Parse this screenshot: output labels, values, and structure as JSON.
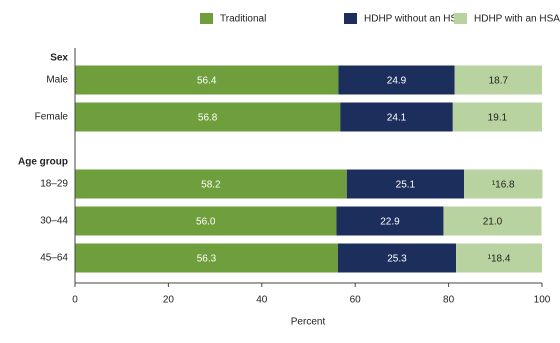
{
  "chart_data": {
    "type": "stacked-bar-horizontal",
    "groups": [
      {
        "label": "Sex",
        "categories": [
          "Male",
          "Female"
        ]
      },
      {
        "label": "Age group",
        "categories": [
          "18–29",
          "30–44",
          "45–64"
        ]
      }
    ],
    "series": [
      {
        "name": "Traditional",
        "color": "#6f9e3d",
        "label_color": "#ffffff",
        "values": [
          56.4,
          56.8,
          58.2,
          56,
          56.3
        ],
        "value_labels": [
          "56.4",
          "56.8",
          "58.2",
          "56.0",
          "56.3"
        ]
      },
      {
        "name": "HDHP without an HSA",
        "color": "#1c2e5c",
        "label_color": "#ffffff",
        "values": [
          24.9,
          24.1,
          25.1,
          22.9,
          25.3
        ],
        "value_labels": [
          "24.9",
          "24.1",
          "25.1",
          "22.9",
          "25.3"
        ]
      },
      {
        "name": "HDHP with an HSA",
        "color": "#b9d3a0",
        "label_color": "#222222",
        "values": [
          18.7,
          19.1,
          16.8,
          21,
          18.4
        ],
        "value_labels": [
          "18.7",
          "19.1",
          "¹16.8",
          "21.0",
          "¹18.4"
        ]
      }
    ],
    "x_label": "Percent",
    "xlim": [
      0,
      100
    ],
    "xticks": [
      0,
      20,
      40,
      60,
      80,
      100
    ],
    "legend": "top-right"
  }
}
